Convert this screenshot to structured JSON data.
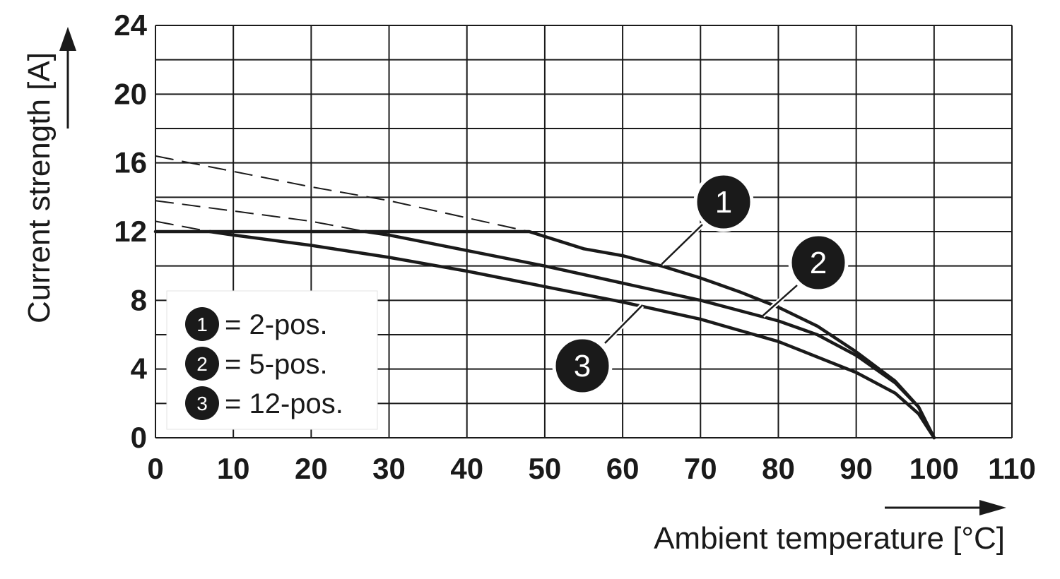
{
  "chart_data": {
    "type": "line",
    "title": "",
    "xlabel": "Ambient temperature [°C]",
    "ylabel": "Current strength [A]",
    "xlim": [
      0,
      110
    ],
    "ylim": [
      0,
      24
    ],
    "x_ticks": [
      "0",
      "10",
      "20",
      "30",
      "40",
      "50",
      "60",
      "70",
      "80",
      "90",
      "100",
      "110"
    ],
    "y_ticks": [
      "0",
      "4",
      "8",
      "12",
      "16",
      "20",
      "24"
    ],
    "grid": true,
    "legend_position": "bottom-left",
    "series": [
      {
        "id": "1",
        "legend_label": "= 2-pos.",
        "color": "#1a1a1a",
        "x": [
          0,
          10,
          20,
          30,
          40,
          48,
          55,
          60,
          65,
          70,
          75,
          80,
          85,
          90,
          95,
          98,
          100
        ],
        "y": [
          12,
          12,
          12,
          12,
          12,
          12,
          11.0,
          10.6,
          10.0,
          9.3,
          8.5,
          7.6,
          6.5,
          5.0,
          3.3,
          1.8,
          0
        ],
        "dashed_extension": {
          "x": [
            0,
            10,
            20,
            30,
            40,
            48
          ],
          "y": [
            16.4,
            15.5,
            14.6,
            13.8,
            12.8,
            12
          ]
        }
      },
      {
        "id": "2",
        "legend_label": "= 5-pos.",
        "color": "#1a1a1a",
        "x": [
          27,
          30,
          40,
          50,
          60,
          70,
          80,
          85,
          90,
          95,
          98,
          100
        ],
        "y": [
          12,
          11.8,
          10.9,
          10.0,
          9.0,
          8.0,
          6.8,
          6.0,
          4.8,
          3.2,
          1.8,
          0
        ],
        "dashed_extension": {
          "x": [
            0,
            10,
            20,
            27
          ],
          "y": [
            13.8,
            13.2,
            12.6,
            12
          ]
        }
      },
      {
        "id": "3",
        "legend_label": "= 12-pos.",
        "color": "#1a1a1a",
        "x": [
          7,
          10,
          20,
          30,
          40,
          50,
          60,
          70,
          80,
          90,
          95,
          98,
          100
        ],
        "y": [
          12,
          11.8,
          11.2,
          10.5,
          9.7,
          8.8,
          7.9,
          6.9,
          5.6,
          3.8,
          2.6,
          1.4,
          0
        ],
        "dashed_extension": {
          "x": [
            0,
            7
          ],
          "y": [
            12.6,
            12
          ]
        }
      }
    ]
  }
}
